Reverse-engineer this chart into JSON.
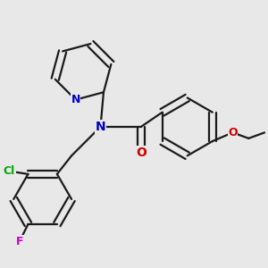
{
  "bg_color": "#e8e8e8",
  "bond_color": "#1a1a1a",
  "bond_width": 1.6,
  "atoms": {
    "N": {
      "color": "#0000cc"
    },
    "O": {
      "color": "#cc0000"
    },
    "Cl": {
      "color": "#00aa00"
    },
    "F": {
      "color": "#cc00cc"
    },
    "C": {
      "color": "#1a1a1a"
    }
  }
}
